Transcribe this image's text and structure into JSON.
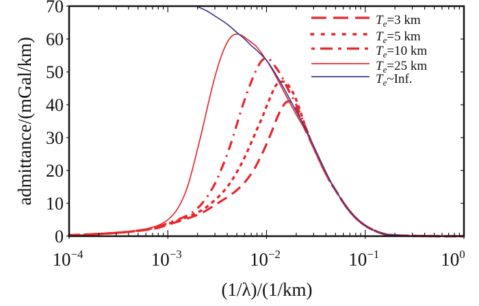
{
  "chart_data": {
    "type": "line",
    "title": "",
    "xlabel": "(1/λ)/(1/km)",
    "ylabel": "admittance/(mGal/km)",
    "xscale": "log",
    "xlim": [
      0.0001,
      1
    ],
    "ylim": [
      0,
      70
    ],
    "xticks": [
      {
        "value": 0.0001,
        "base": "10",
        "exp": "−4"
      },
      {
        "value": 0.001,
        "base": "10",
        "exp": "−3"
      },
      {
        "value": 0.01,
        "base": "10",
        "exp": "−2"
      },
      {
        "value": 0.1,
        "base": "10",
        "exp": "−1"
      },
      {
        "value": 1,
        "base": "10",
        "exp": "0"
      }
    ],
    "yticks": [
      "0",
      "10",
      "20",
      "30",
      "40",
      "50",
      "60",
      "70"
    ],
    "grid": false,
    "legend_position": "top-right",
    "series": [
      {
        "name": "Te=3 km",
        "label_sym": "T",
        "label_sub": "e",
        "label_rest": "=3 km",
        "color": "#e8262b",
        "dash": "dashed",
        "x": [
          0.0001,
          0.0003,
          0.0007,
          0.001,
          0.002,
          0.003,
          0.005,
          0.007,
          0.009,
          0.011,
          0.013,
          0.015,
          0.0165,
          0.018,
          0.02,
          0.025,
          0.03,
          0.04,
          0.05,
          0.07,
          0.1,
          0.15,
          0.2,
          0.3,
          0.5,
          1
        ],
        "y": [
          0.3,
          1.0,
          2.2,
          3.5,
          6.5,
          9.5,
          14,
          19,
          25,
          31,
          36.5,
          40,
          41,
          40.5,
          38.5,
          32,
          27,
          19,
          14,
          7.5,
          3.2,
          0.8,
          0.3,
          0.1,
          0,
          0
        ]
      },
      {
        "name": "Te=5 km",
        "label_sym": "T",
        "label_sub": "e",
        "label_rest": "=5 km",
        "color": "#e8262b",
        "dash": "dotted",
        "x": [
          0.0001,
          0.0003,
          0.0007,
          0.001,
          0.002,
          0.003,
          0.004,
          0.005,
          0.006,
          0.007,
          0.008,
          0.009,
          0.01,
          0.011,
          0.012,
          0.013,
          0.015,
          0.017,
          0.02,
          0.025,
          0.03,
          0.04,
          0.05,
          0.07,
          0.1,
          0.15,
          0.2,
          0.3,
          0.5,
          1
        ],
        "y": [
          0.3,
          1.0,
          2.3,
          3.7,
          7.2,
          11,
          15,
          19.5,
          24,
          28.5,
          32.5,
          36,
          39.5,
          42.5,
          45,
          46.5,
          47,
          45.5,
          41.5,
          33,
          27,
          19,
          14,
          7.5,
          3.2,
          0.8,
          0.3,
          0.1,
          0,
          0
        ]
      },
      {
        "name": "Te=10 km",
        "label_sym": "T",
        "label_sub": "e",
        "label_rest": "=10 km",
        "color": "#e8262b",
        "dash": "dashdot",
        "x": [
          0.0001,
          0.0003,
          0.0007,
          0.001,
          0.0015,
          0.002,
          0.0025,
          0.003,
          0.0035,
          0.004,
          0.0045,
          0.005,
          0.006,
          0.007,
          0.008,
          0.009,
          0.01,
          0.011,
          0.012,
          0.014,
          0.017,
          0.02,
          0.025,
          0.03,
          0.04,
          0.05,
          0.07,
          0.1,
          0.15,
          0.2,
          0.3,
          0.5,
          1
        ],
        "y": [
          0.3,
          1.0,
          2.4,
          4.0,
          6.0,
          8.5,
          12,
          16,
          20.5,
          25,
          29.5,
          34,
          41.5,
          47,
          51,
          53.5,
          54,
          53.5,
          52,
          49,
          44,
          40,
          33,
          27,
          19,
          14,
          7.5,
          3.2,
          0.8,
          0.3,
          0.1,
          0,
          0
        ]
      },
      {
        "name": "Te=25 km",
        "label_sym": "T",
        "label_sub": "e",
        "label_rest": "=25 km",
        "color": "#e8262b",
        "dash": "solid",
        "x": [
          0.0001,
          0.0002,
          0.0004,
          0.0006,
          0.0008,
          0.001,
          0.0012,
          0.0014,
          0.0016,
          0.0018,
          0.002,
          0.0023,
          0.0026,
          0.003,
          0.0035,
          0.004,
          0.0045,
          0.005,
          0.0055,
          0.006,
          0.007,
          0.008,
          0.01,
          0.012,
          0.015,
          0.02,
          0.025,
          0.03,
          0.04,
          0.05,
          0.07,
          0.1,
          0.15,
          0.2,
          0.3,
          0.5,
          1
        ],
        "y": [
          0.3,
          0.6,
          1.3,
          2.2,
          3.3,
          5,
          7.5,
          11,
          15.5,
          21,
          26.5,
          34,
          41,
          48.5,
          55,
          59,
          61,
          61.5,
          61.2,
          60.5,
          59,
          57.5,
          53.5,
          49.5,
          44,
          37,
          32,
          27,
          19,
          14,
          7.5,
          3.2,
          0.8,
          0.3,
          0.1,
          0,
          0
        ]
      },
      {
        "name": "Te~Inf.",
        "label_sym": "T",
        "label_sub": "e",
        "label_rest": "~Inf.",
        "color": "#3a3a8f",
        "dash": "solid",
        "x": [
          0.00195,
          0.0025,
          0.003,
          0.004,
          0.005,
          0.006,
          0.007,
          0.008,
          0.01,
          0.012,
          0.015,
          0.02,
          0.025,
          0.03,
          0.04,
          0.05,
          0.07,
          0.1,
          0.15,
          0.2,
          0.3,
          0.5,
          1
        ],
        "y": [
          70,
          68.5,
          67,
          64.5,
          62,
          60,
          58,
          56.5,
          53.5,
          50,
          45,
          38,
          32.5,
          27.5,
          19.5,
          14,
          7.5,
          3.2,
          0.8,
          0.3,
          0.1,
          0,
          0
        ]
      }
    ]
  }
}
